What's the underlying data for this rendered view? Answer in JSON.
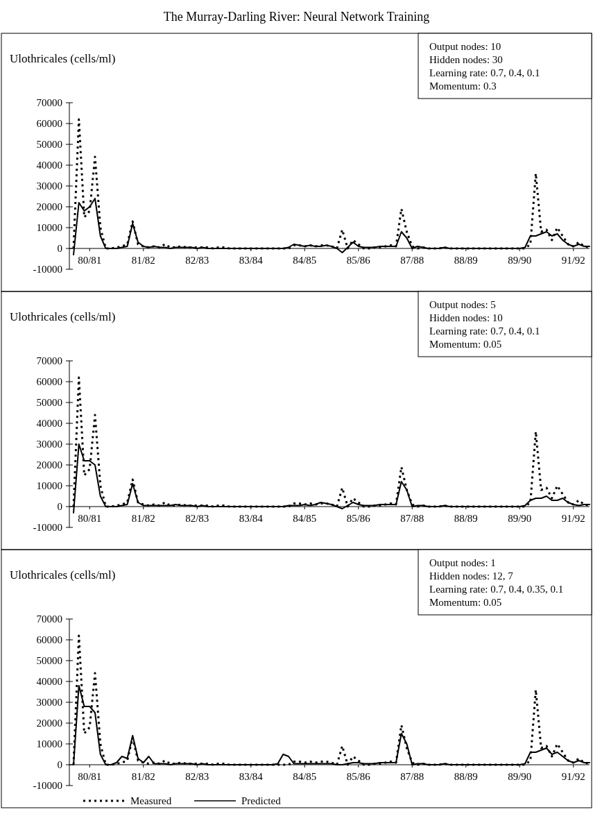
{
  "chart_data": [
    {
      "type": "line",
      "title": "The Murray-Darling River: Neural Network Training",
      "ylabel": "Ulothricales (cells/ml)",
      "annotations": [
        "Output nodes: 10",
        "Hidden nodes: 30",
        "Learning rate: 0.7, 0.4, 0.1",
        "Momentum: 0.3"
      ],
      "categories": [
        null,
        null,
        null,
        "80/81",
        null,
        null,
        null,
        null,
        null,
        null,
        null,
        null,
        null,
        "81/82",
        null,
        null,
        null,
        null,
        null,
        null,
        null,
        null,
        null,
        "82/83",
        null,
        null,
        null,
        null,
        null,
        null,
        null,
        null,
        null,
        "83/84",
        null,
        null,
        null,
        null,
        null,
        null,
        null,
        null,
        null,
        "84/85",
        null,
        null,
        null,
        null,
        null,
        null,
        null,
        null,
        null,
        "85/86",
        null,
        null,
        null,
        null,
        null,
        null,
        null,
        null,
        null,
        "87/88",
        null,
        null,
        null,
        null,
        null,
        null,
        null,
        null,
        null,
        "88/89",
        null,
        null,
        null,
        null,
        null,
        null,
        null,
        null,
        null,
        "89/90",
        null,
        null,
        null,
        null,
        null,
        null,
        null,
        null,
        null,
        "91/92",
        null,
        null,
        null
      ],
      "ylim": [
        -10000,
        70000
      ],
      "yticks": [
        -10000,
        0,
        10000,
        20000,
        30000,
        40000,
        50000,
        60000,
        70000
      ],
      "series": [
        {
          "color": "#000000",
          "line_style": "dotted",
          "values": [
            0,
            62000,
            15000,
            18000,
            44000,
            10000,
            0,
            0,
            500,
            1000,
            2000,
            13000,
            2000,
            1000,
            500,
            1000,
            500,
            2000,
            500,
            500,
            1000,
            500,
            500,
            500,
            500,
            500,
            0,
            500,
            500,
            0,
            0,
            0,
            0,
            0,
            0,
            0,
            0,
            0,
            0,
            0,
            0,
            1500,
            1500,
            1000,
            1500,
            1000,
            1500,
            1500,
            1000,
            0,
            9000,
            0,
            4000,
            2000,
            0,
            0,
            500,
            500,
            1000,
            1500,
            1000,
            19000,
            8000,
            1000,
            0,
            500,
            0,
            0,
            0,
            500,
            0,
            0,
            0,
            0,
            0,
            0,
            0,
            0,
            0,
            0,
            0,
            0,
            0,
            0,
            0,
            2000,
            36000,
            8000,
            9000,
            4000,
            10000,
            6000,
            2000,
            1000,
            3000,
            1000,
            500
          ]
        },
        {
          "color": "#000000",
          "line_style": "solid",
          "values": [
            -3000,
            22000,
            18000,
            20000,
            24000,
            6000,
            0,
            0,
            0,
            500,
            1000,
            12000,
            3000,
            1000,
            500,
            1000,
            500,
            500,
            0,
            500,
            500,
            500,
            500,
            0,
            500,
            0,
            0,
            0,
            0,
            0,
            0,
            0,
            0,
            0,
            0,
            0,
            0,
            0,
            0,
            0,
            500,
            2000,
            1500,
            1000,
            1500,
            1000,
            1000,
            1500,
            1000,
            0,
            -2000,
            500,
            3000,
            1000,
            500,
            500,
            500,
            1000,
            1000,
            1000,
            1000,
            8000,
            5000,
            0,
            1000,
            500,
            0,
            0,
            0,
            500,
            0,
            0,
            0,
            0,
            0,
            0,
            0,
            0,
            0,
            0,
            0,
            0,
            0,
            0,
            500,
            6000,
            6000,
            7000,
            8000,
            6000,
            7000,
            4000,
            2000,
            1000,
            2000,
            1000,
            1000
          ]
        }
      ]
    },
    {
      "type": "line",
      "ylabel": "Ulothricales (cells/ml)",
      "annotations": [
        "Output nodes: 5",
        "Hidden nodes: 10",
        "Learning rate: 0.7, 0.4, 0.1",
        "Momentum: 0.05"
      ],
      "categories": [
        null,
        null,
        null,
        "80/81",
        null,
        null,
        null,
        null,
        null,
        null,
        null,
        null,
        null,
        "81/82",
        null,
        null,
        null,
        null,
        null,
        null,
        null,
        null,
        null,
        "82/83",
        null,
        null,
        null,
        null,
        null,
        null,
        null,
        null,
        null,
        "83/84",
        null,
        null,
        null,
        null,
        null,
        null,
        null,
        null,
        null,
        "84/85",
        null,
        null,
        null,
        null,
        null,
        null,
        null,
        null,
        null,
        "85/86",
        null,
        null,
        null,
        null,
        null,
        null,
        null,
        null,
        null,
        "87/88",
        null,
        null,
        null,
        null,
        null,
        null,
        null,
        null,
        null,
        "88/89",
        null,
        null,
        null,
        null,
        null,
        null,
        null,
        null,
        null,
        "89/90",
        null,
        null,
        null,
        null,
        null,
        null,
        null,
        null,
        null,
        "91/92",
        null,
        null,
        null
      ],
      "ylim": [
        -10000,
        70000
      ],
      "yticks": [
        -10000,
        0,
        10000,
        20000,
        30000,
        40000,
        50000,
        60000,
        70000
      ],
      "series": [
        {
          "color": "#000000",
          "line_style": "dotted",
          "values": [
            0,
            62000,
            15000,
            18000,
            44000,
            10000,
            0,
            0,
            500,
            1000,
            2000,
            13000,
            2000,
            1000,
            500,
            1000,
            500,
            2000,
            500,
            500,
            1000,
            500,
            500,
            500,
            500,
            500,
            0,
            500,
            500,
            0,
            0,
            0,
            0,
            0,
            0,
            0,
            0,
            0,
            0,
            0,
            0,
            1500,
            1500,
            1000,
            1500,
            1000,
            1500,
            1500,
            1000,
            0,
            9000,
            0,
            4000,
            2000,
            0,
            0,
            500,
            500,
            1000,
            1500,
            1000,
            19000,
            8000,
            1000,
            0,
            500,
            0,
            0,
            0,
            500,
            0,
            0,
            0,
            0,
            0,
            0,
            0,
            0,
            0,
            0,
            0,
            0,
            0,
            0,
            0,
            2000,
            36000,
            8000,
            9000,
            4000,
            10000,
            6000,
            2000,
            1000,
            3000,
            1000,
            500
          ]
        },
        {
          "color": "#000000",
          "line_style": "solid",
          "values": [
            -3000,
            30000,
            22000,
            22000,
            20000,
            5000,
            0,
            0,
            0,
            500,
            1000,
            11000,
            2000,
            500,
            500,
            500,
            500,
            500,
            500,
            1000,
            500,
            500,
            500,
            0,
            500,
            0,
            0,
            0,
            0,
            0,
            0,
            0,
            0,
            0,
            0,
            0,
            0,
            0,
            0,
            0,
            500,
            500,
            500,
            1000,
            500,
            1000,
            2000,
            1500,
            1000,
            0,
            -1000,
            500,
            2000,
            1000,
            500,
            500,
            500,
            1000,
            1000,
            1000,
            1000,
            12000,
            8000,
            0,
            500,
            500,
            0,
            0,
            0,
            500,
            0,
            0,
            0,
            0,
            0,
            0,
            0,
            0,
            0,
            0,
            0,
            0,
            0,
            0,
            500,
            3000,
            4000,
            4000,
            5000,
            3000,
            3000,
            4000,
            2000,
            1000,
            500,
            1000,
            1000
          ]
        }
      ]
    },
    {
      "type": "line",
      "ylabel": "Ulothricales (cells/ml)",
      "annotations": [
        "Output nodes: 1",
        "Hidden nodes: 12, 7",
        "Learning rate: 0.7, 0.4, 0.35, 0.1",
        "Momentum: 0.05"
      ],
      "legend": "bottom left",
      "categories": [
        null,
        null,
        null,
        "80/81",
        null,
        null,
        null,
        null,
        null,
        null,
        null,
        null,
        null,
        "81/82",
        null,
        null,
        null,
        null,
        null,
        null,
        null,
        null,
        null,
        "82/83",
        null,
        null,
        null,
        null,
        null,
        null,
        null,
        null,
        null,
        "83/84",
        null,
        null,
        null,
        null,
        null,
        null,
        null,
        null,
        null,
        "84/85",
        null,
        null,
        null,
        null,
        null,
        null,
        null,
        null,
        null,
        "85/86",
        null,
        null,
        null,
        null,
        null,
        null,
        null,
        null,
        null,
        "87/88",
        null,
        null,
        null,
        null,
        null,
        null,
        null,
        null,
        null,
        "88/89",
        null,
        null,
        null,
        null,
        null,
        null,
        null,
        null,
        null,
        "89/90",
        null,
        null,
        null,
        null,
        null,
        null,
        null,
        null,
        null,
        "91/92",
        null,
        null,
        null
      ],
      "ylim": [
        -10000,
        70000
      ],
      "yticks": [
        -10000,
        0,
        10000,
        20000,
        30000,
        40000,
        50000,
        60000,
        70000
      ],
      "series": [
        {
          "name": "Measured",
          "color": "#000000",
          "line_style": "dotted",
          "values": [
            0,
            62000,
            15000,
            18000,
            44000,
            10000,
            0,
            0,
            500,
            1000,
            2000,
            13000,
            2000,
            1000,
            500,
            1000,
            500,
            2000,
            500,
            500,
            1000,
            500,
            500,
            500,
            500,
            500,
            0,
            500,
            500,
            0,
            0,
            0,
            0,
            0,
            0,
            0,
            0,
            0,
            0,
            0,
            0,
            1500,
            1500,
            1000,
            1500,
            1000,
            1500,
            1500,
            1000,
            0,
            9000,
            0,
            4000,
            2000,
            0,
            0,
            500,
            500,
            1000,
            1500,
            1000,
            19000,
            8000,
            1000,
            0,
            500,
            0,
            0,
            0,
            500,
            0,
            0,
            0,
            0,
            0,
            0,
            0,
            0,
            0,
            0,
            0,
            0,
            0,
            0,
            0,
            2000,
            36000,
            8000,
            9000,
            4000,
            10000,
            6000,
            2000,
            1000,
            3000,
            1000,
            500
          ]
        },
        {
          "name": "Predicted",
          "color": "#000000",
          "line_style": "solid",
          "values": [
            0,
            38000,
            28000,
            28000,
            25000,
            5000,
            0,
            0,
            1000,
            4000,
            3000,
            14000,
            3000,
            1000,
            4000,
            500,
            500,
            500,
            0,
            500,
            500,
            500,
            500,
            0,
            500,
            0,
            0,
            0,
            0,
            0,
            0,
            0,
            0,
            0,
            0,
            0,
            0,
            0,
            500,
            5000,
            4000,
            500,
            500,
            500,
            500,
            500,
            500,
            500,
            500,
            0,
            0,
            500,
            1000,
            1000,
            500,
            500,
            500,
            1000,
            1000,
            1000,
            1000,
            15000,
            10000,
            0,
            500,
            500,
            0,
            0,
            0,
            500,
            0,
            0,
            0,
            0,
            0,
            0,
            0,
            0,
            0,
            0,
            0,
            0,
            0,
            0,
            500,
            6000,
            6000,
            7000,
            8000,
            5000,
            6000,
            4000,
            2000,
            1000,
            2000,
            1000,
            1000
          ]
        }
      ]
    }
  ]
}
